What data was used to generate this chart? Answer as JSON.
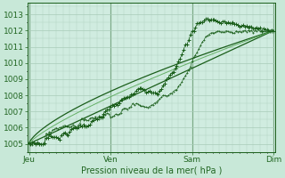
{
  "xlabel": "Pression niveau de la mer( hPa )",
  "background_color": "#c8e8d8",
  "plot_bg_color": "#d0ece0",
  "grid_color": "#a8ccb8",
  "text_color": "#226622",
  "tick_color": "#226622",
  "ylim": [
    1004.5,
    1013.7
  ],
  "yticks": [
    1005,
    1006,
    1007,
    1008,
    1009,
    1010,
    1011,
    1012,
    1013
  ],
  "day_labels": [
    "Jeu",
    "Ven",
    "Sam",
    "Dim"
  ],
  "day_positions": [
    0,
    96,
    192,
    288
  ],
  "dark_green": "#1a5e1a",
  "light_green": "#5aaa5a"
}
